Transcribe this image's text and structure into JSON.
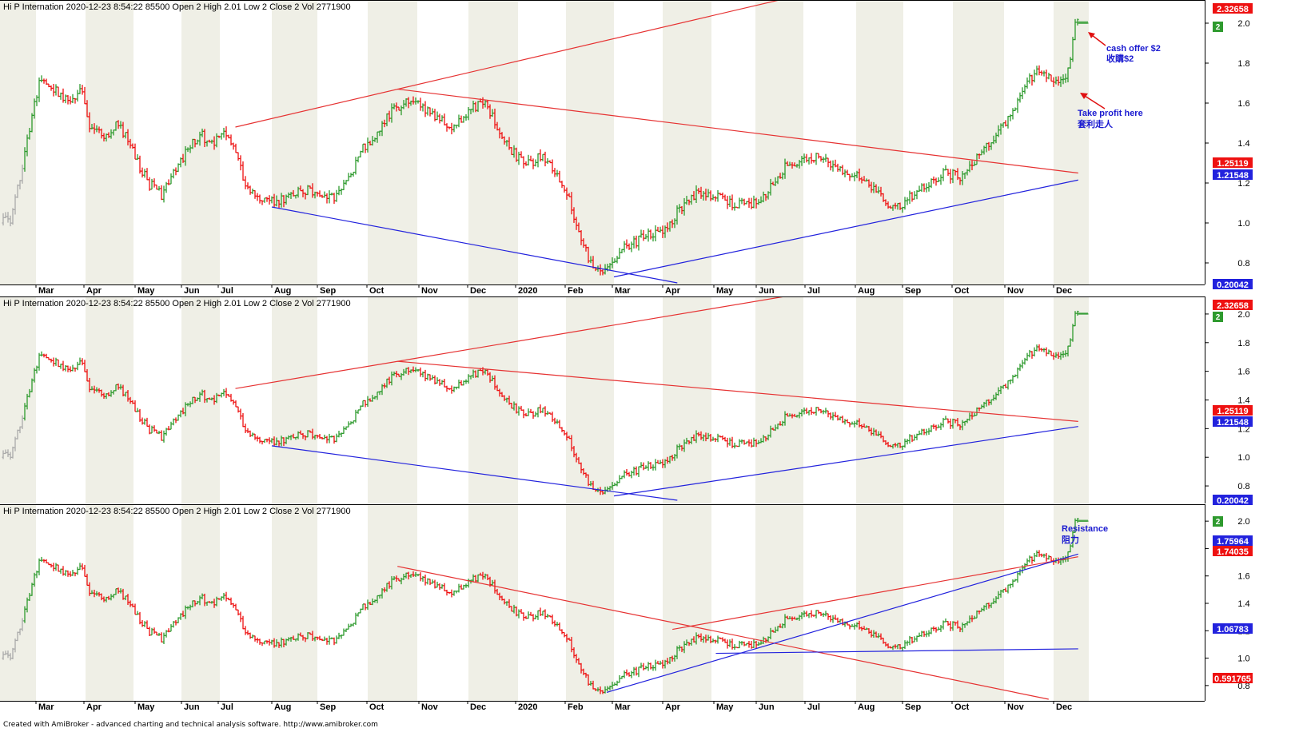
{
  "colors": {
    "up": "#2e9a2e",
    "down": "#ee1111",
    "neutral": "#aaaaaa",
    "trend_red": "#e63232",
    "trend_blue": "#2222dd",
    "annotation_blue": "#1a1ad0",
    "arrow_red": "#e01010",
    "band": "#efefe6"
  },
  "panes": [
    {
      "header": "Hi P Internation   2020-12-23 8:54:22  85500  Open 2  High 2.01  Low 2  Close 2  Vol 2771900",
      "ylim": [
        0.7,
        2.1
      ],
      "ticks": [
        "0.8",
        "1.0",
        "1.2",
        "1.4",
        "1.6",
        "1.8",
        "2.0"
      ],
      "price_tags": [
        {
          "label": "2.32658",
          "value": 2.1,
          "color": "#ee1111"
        },
        {
          "label": "1.25119",
          "value": 1.2512,
          "color": "#ee1111"
        },
        {
          "label": "1.21548",
          "value": 1.2155,
          "color": "#2222dd"
        },
        {
          "label": "0.20042",
          "value": 0.7,
          "color": "#2222dd"
        }
      ],
      "annotations": [
        {
          "text": "cash offer $2",
          "note": "收購$2"
        },
        {
          "text": "Take profit here",
          "note": "套利走人"
        }
      ]
    },
    {
      "header": "Hi P Internation   2020-12-23 8:54:22  85500  Open 2  High 2.01  Low 2  Close 2  Vol 2771900",
      "ylim": [
        0.7,
        2.1
      ],
      "ticks": [
        "0.8",
        "1.0",
        "1.2",
        "1.4",
        "1.6",
        "1.8",
        "2.0"
      ],
      "price_tags": [
        {
          "label": "2.32658",
          "value": 2.1,
          "color": "#ee1111"
        },
        {
          "label": "1.25119",
          "value": 1.2512,
          "color": "#ee1111"
        },
        {
          "label": "1.21548",
          "value": 1.2155,
          "color": "#2222dd"
        },
        {
          "label": "0.20042",
          "value": 0.7,
          "color": "#2222dd"
        }
      ],
      "annotations": []
    },
    {
      "header": "Hi P Internation   2020-12-23 8:54:22  85500  Open 2  High 2.01  Low 2  Close 2  Vol 2771900",
      "ylim": [
        0.7,
        2.1
      ],
      "ticks": [
        "0.8",
        "1.0",
        "1.2",
        "1.4",
        "1.6",
        "1.8",
        "2.0"
      ],
      "price_tags": [
        {
          "label": "1.75964",
          "value": 1.7596,
          "color": "#2222dd"
        },
        {
          "label": "1.74035",
          "value": 1.7404,
          "color": "#ee1111"
        },
        {
          "label": "1.06783",
          "value": 1.0678,
          "color": "#2222dd"
        },
        {
          "label": "0.591765",
          "value": 0.7,
          "color": "#ee1111"
        }
      ],
      "annotations": [
        {
          "text": "Resistance",
          "note": "阻力"
        }
      ]
    }
  ],
  "last_badge": "2",
  "x_labels": [
    "Mar",
    "Apr",
    "May",
    "Jun",
    "Jul",
    "Aug",
    "Sep",
    "Oct",
    "Nov",
    "Dec",
    "2020",
    "Feb",
    "Mar",
    "Apr",
    "May",
    "Jun",
    "Jul",
    "Aug",
    "Sep",
    "Oct",
    "Nov",
    "Dec"
  ],
  "footer": "Created with AmiBroker - advanced charting and technical analysis software. http://www.amibroker.com",
  "chart_data": {
    "type": "bar",
    "title": "Hi P Internation",
    "bar_style": "OHLC price bars",
    "x_period": "Feb 2019 – Dec 2020",
    "months": [
      "Feb",
      "Mar",
      "Apr",
      "May",
      "Jun",
      "Jul",
      "Aug",
      "Sep",
      "Oct",
      "Nov",
      "Dec",
      "2020",
      "Feb",
      "Mar",
      "Apr",
      "May",
      "Jun",
      "Jul",
      "Aug",
      "Sep",
      "Oct",
      "Nov",
      "Dec"
    ],
    "close_path": [
      [
        0.0,
        1.0
      ],
      [
        0.3,
        1.02
      ],
      [
        0.6,
        1.25
      ],
      [
        0.9,
        1.55
      ],
      [
        1.1,
        1.72
      ],
      [
        1.4,
        1.66
      ],
      [
        1.7,
        1.6
      ],
      [
        1.9,
        1.68
      ],
      [
        2.1,
        1.48
      ],
      [
        2.4,
        1.44
      ],
      [
        2.7,
        1.5
      ],
      [
        3.0,
        1.35
      ],
      [
        3.3,
        1.2
      ],
      [
        3.6,
        1.14
      ],
      [
        3.9,
        1.28
      ],
      [
        4.2,
        1.39
      ],
      [
        4.5,
        1.44
      ],
      [
        4.8,
        1.4
      ],
      [
        5.1,
        1.44
      ],
      [
        5.3,
        1.38
      ],
      [
        5.5,
        1.18
      ],
      [
        5.8,
        1.12
      ],
      [
        6.1,
        1.11
      ],
      [
        6.4,
        1.13
      ],
      [
        6.7,
        1.17
      ],
      [
        7.0,
        1.14
      ],
      [
        7.3,
        1.12
      ],
      [
        7.6,
        1.2
      ],
      [
        7.9,
        1.37
      ],
      [
        8.2,
        1.46
      ],
      [
        8.5,
        1.56
      ],
      [
        8.8,
        1.6
      ],
      [
        9.1,
        1.58
      ],
      [
        9.4,
        1.52
      ],
      [
        9.7,
        1.47
      ],
      [
        10.0,
        1.56
      ],
      [
        10.3,
        1.6
      ],
      [
        10.6,
        1.48
      ],
      [
        10.9,
        1.35
      ],
      [
        11.2,
        1.3
      ],
      [
        11.5,
        1.33
      ],
      [
        11.8,
        1.25
      ],
      [
        12.1,
        1.1
      ],
      [
        12.3,
        0.93
      ],
      [
        12.5,
        0.8
      ],
      [
        12.7,
        0.76
      ],
      [
        12.9,
        0.78
      ],
      [
        13.1,
        0.86
      ],
      [
        13.4,
        0.9
      ],
      [
        13.7,
        0.94
      ],
      [
        14.0,
        0.94
      ],
      [
        14.3,
        1.06
      ],
      [
        14.6,
        1.14
      ],
      [
        14.9,
        1.14
      ],
      [
        15.2,
        1.12
      ],
      [
        15.5,
        1.09
      ],
      [
        15.8,
        1.09
      ],
      [
        16.1,
        1.11
      ],
      [
        16.4,
        1.22
      ],
      [
        16.7,
        1.3
      ],
      [
        17.0,
        1.31
      ],
      [
        17.3,
        1.33
      ],
      [
        17.6,
        1.27
      ],
      [
        17.9,
        1.24
      ],
      [
        18.1,
        1.22
      ],
      [
        18.4,
        1.16
      ],
      [
        18.7,
        1.08
      ],
      [
        19.0,
        1.1
      ],
      [
        19.3,
        1.16
      ],
      [
        19.6,
        1.22
      ],
      [
        19.9,
        1.25
      ],
      [
        20.2,
        1.22
      ],
      [
        20.5,
        1.33
      ],
      [
        20.8,
        1.42
      ],
      [
        21.1,
        1.52
      ],
      [
        21.4,
        1.7
      ],
      [
        21.7,
        1.76
      ],
      [
        21.95,
        1.73
      ],
      [
        22.1,
        1.69
      ],
      [
        22.3,
        1.72
      ],
      [
        22.45,
        1.8
      ],
      [
        22.6,
        2.0
      ],
      [
        22.8,
        2.0
      ]
    ],
    "last": {
      "open": 2,
      "high": 2.01,
      "low": 2,
      "close": 2,
      "volume": 2771900,
      "date": "2020-12-23 8:54:22"
    },
    "ylim": [
      0.7,
      2.1
    ]
  }
}
